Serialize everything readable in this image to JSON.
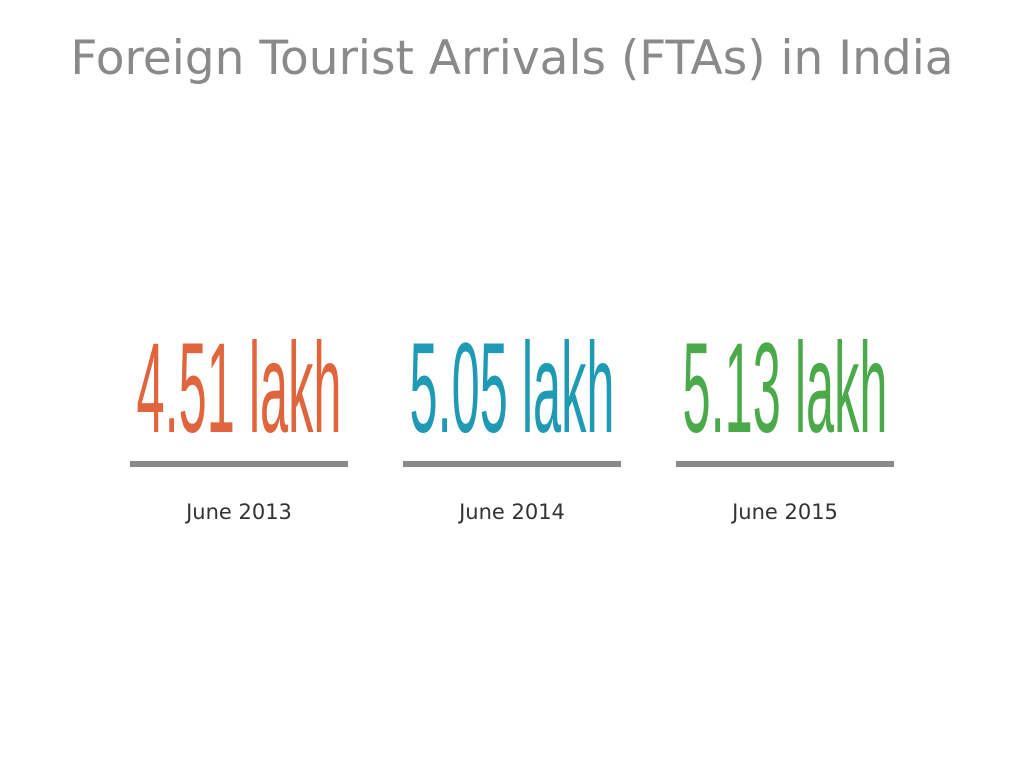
{
  "title": "Foreign Tourist Arrivals (FTAs) in India",
  "stats": [
    {
      "value": "4.51 lakh",
      "period": "June 2013",
      "color": "#e0643c"
    },
    {
      "value": "5.05 lakh",
      "period": "June 2014",
      "color": "#1f9ab5"
    },
    {
      "value": "5.13 lakh",
      "period": "June 2015",
      "color": "#4aaa4a"
    }
  ]
}
